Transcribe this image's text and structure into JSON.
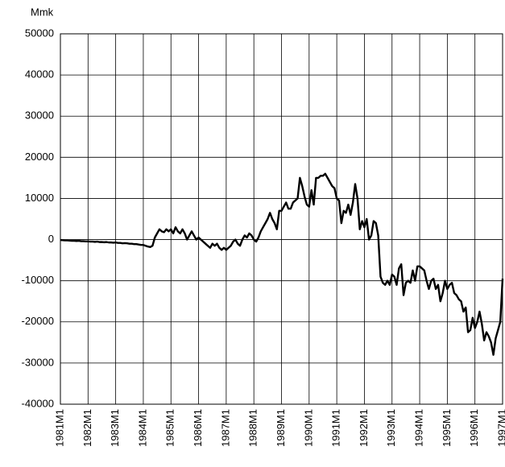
{
  "chart_data": {
    "type": "line",
    "y_label": "Mmk",
    "categories": [
      "1981M1",
      null,
      null,
      null,
      null,
      null,
      null,
      null,
      null,
      null,
      null,
      null,
      "1982M1",
      null,
      null,
      null,
      null,
      null,
      null,
      null,
      null,
      null,
      null,
      null,
      "1983M1",
      null,
      null,
      null,
      null,
      null,
      null,
      null,
      null,
      null,
      null,
      null,
      "1984M1",
      null,
      null,
      null,
      null,
      null,
      null,
      null,
      null,
      null,
      null,
      null,
      "1985M1",
      null,
      null,
      null,
      null,
      null,
      null,
      null,
      null,
      null,
      null,
      null,
      "1986M1",
      null,
      null,
      null,
      null,
      null,
      null,
      null,
      null,
      null,
      null,
      null,
      "1987M1",
      null,
      null,
      null,
      null,
      null,
      null,
      null,
      null,
      null,
      null,
      null,
      "1988M1",
      null,
      null,
      null,
      null,
      null,
      null,
      null,
      null,
      null,
      null,
      null,
      "1989M1",
      null,
      null,
      null,
      null,
      null,
      null,
      null,
      null,
      null,
      null,
      null,
      "1990M1",
      null,
      null,
      null,
      null,
      null,
      null,
      null,
      null,
      null,
      null,
      null,
      "1991M1",
      null,
      null,
      null,
      null,
      null,
      null,
      null,
      null,
      null,
      null,
      null,
      "1992M1",
      null,
      null,
      null,
      null,
      null,
      null,
      null,
      null,
      null,
      null,
      null,
      "1993M1",
      null,
      null,
      null,
      null,
      null,
      null,
      null,
      null,
      null,
      null,
      null,
      "1994M1",
      null,
      null,
      null,
      null,
      null,
      null,
      null,
      null,
      null,
      null,
      null,
      "1995M1",
      null,
      null,
      null,
      null,
      null,
      null,
      null,
      null,
      null,
      null,
      null,
      "1996M1",
      null,
      null,
      null,
      null,
      null,
      null,
      null,
      null,
      null,
      null,
      null,
      "1997M1"
    ],
    "values": [
      -100,
      -150,
      -200,
      -200,
      -250,
      -300,
      -300,
      -350,
      -300,
      -400,
      -400,
      -450,
      -450,
      -500,
      -500,
      -550,
      -500,
      -600,
      -600,
      -650,
      -600,
      -700,
      -700,
      -750,
      -700,
      -800,
      -800,
      -900,
      -850,
      -900,
      -1000,
      -1000,
      -1100,
      -1100,
      -1200,
      -1300,
      -1300,
      -1500,
      -1700,
      -1800,
      -1500,
      500,
      1500,
      2500,
      2000,
      1800,
      2500,
      2000,
      2500,
      1500,
      3000,
      2000,
      1500,
      2500,
      1500,
      0,
      1000,
      2000,
      1000,
      0,
      500,
      0,
      -500,
      -1000,
      -1500,
      -2000,
      -1000,
      -1500,
      -1000,
      -2000,
      -2500,
      -2000,
      -2500,
      -2000,
      -1500,
      -500,
      0,
      -1000,
      -1500,
      0,
      1000,
      500,
      1500,
      1000,
      0,
      -500,
      500,
      2000,
      3000,
      4000,
      5000,
      6500,
      5000,
      4000,
      2500,
      7000,
      7000,
      8000,
      9000,
      7500,
      7500,
      9000,
      9500,
      10000,
      15000,
      13000,
      10500,
      8500,
      8000,
      12000,
      8500,
      15000,
      15000,
      15500,
      15500,
      16000,
      15000,
      14000,
      13000,
      12500,
      10000,
      9500,
      4000,
      7000,
      6500,
      8500,
      6000,
      9000,
      13500,
      10000,
      2500,
      4500,
      3000,
      5000,
      0,
      1000,
      4500,
      4000,
      1000,
      -9000,
      -10500,
      -11000,
      -10000,
      -11000,
      -8500,
      -9000,
      -11000,
      -7000,
      -6000,
      -13500,
      -10500,
      -10000,
      -10500,
      -7500,
      -10000,
      -6500,
      -6500,
      -7000,
      -7500,
      -10000,
      -12000,
      -10000,
      -9500,
      -12000,
      -11000,
      -15000,
      -13000,
      -10000,
      -12000,
      -11000,
      -10500,
      -13000,
      -13500,
      -14500,
      -15000,
      -17500,
      -16500,
      -22500,
      -22000,
      -19000,
      -21500,
      -20000,
      -17500,
      -20500,
      -24500,
      -22500,
      -23500,
      -25000,
      -28000,
      -24000,
      -22000,
      -20000,
      -9500
    ],
    "color": "#000000",
    "ylim": [
      -40000,
      50000
    ],
    "yticks": [
      -40000,
      -30000,
      -20000,
      -10000,
      0,
      10000,
      20000,
      30000,
      40000,
      50000
    ],
    "grid": true
  }
}
